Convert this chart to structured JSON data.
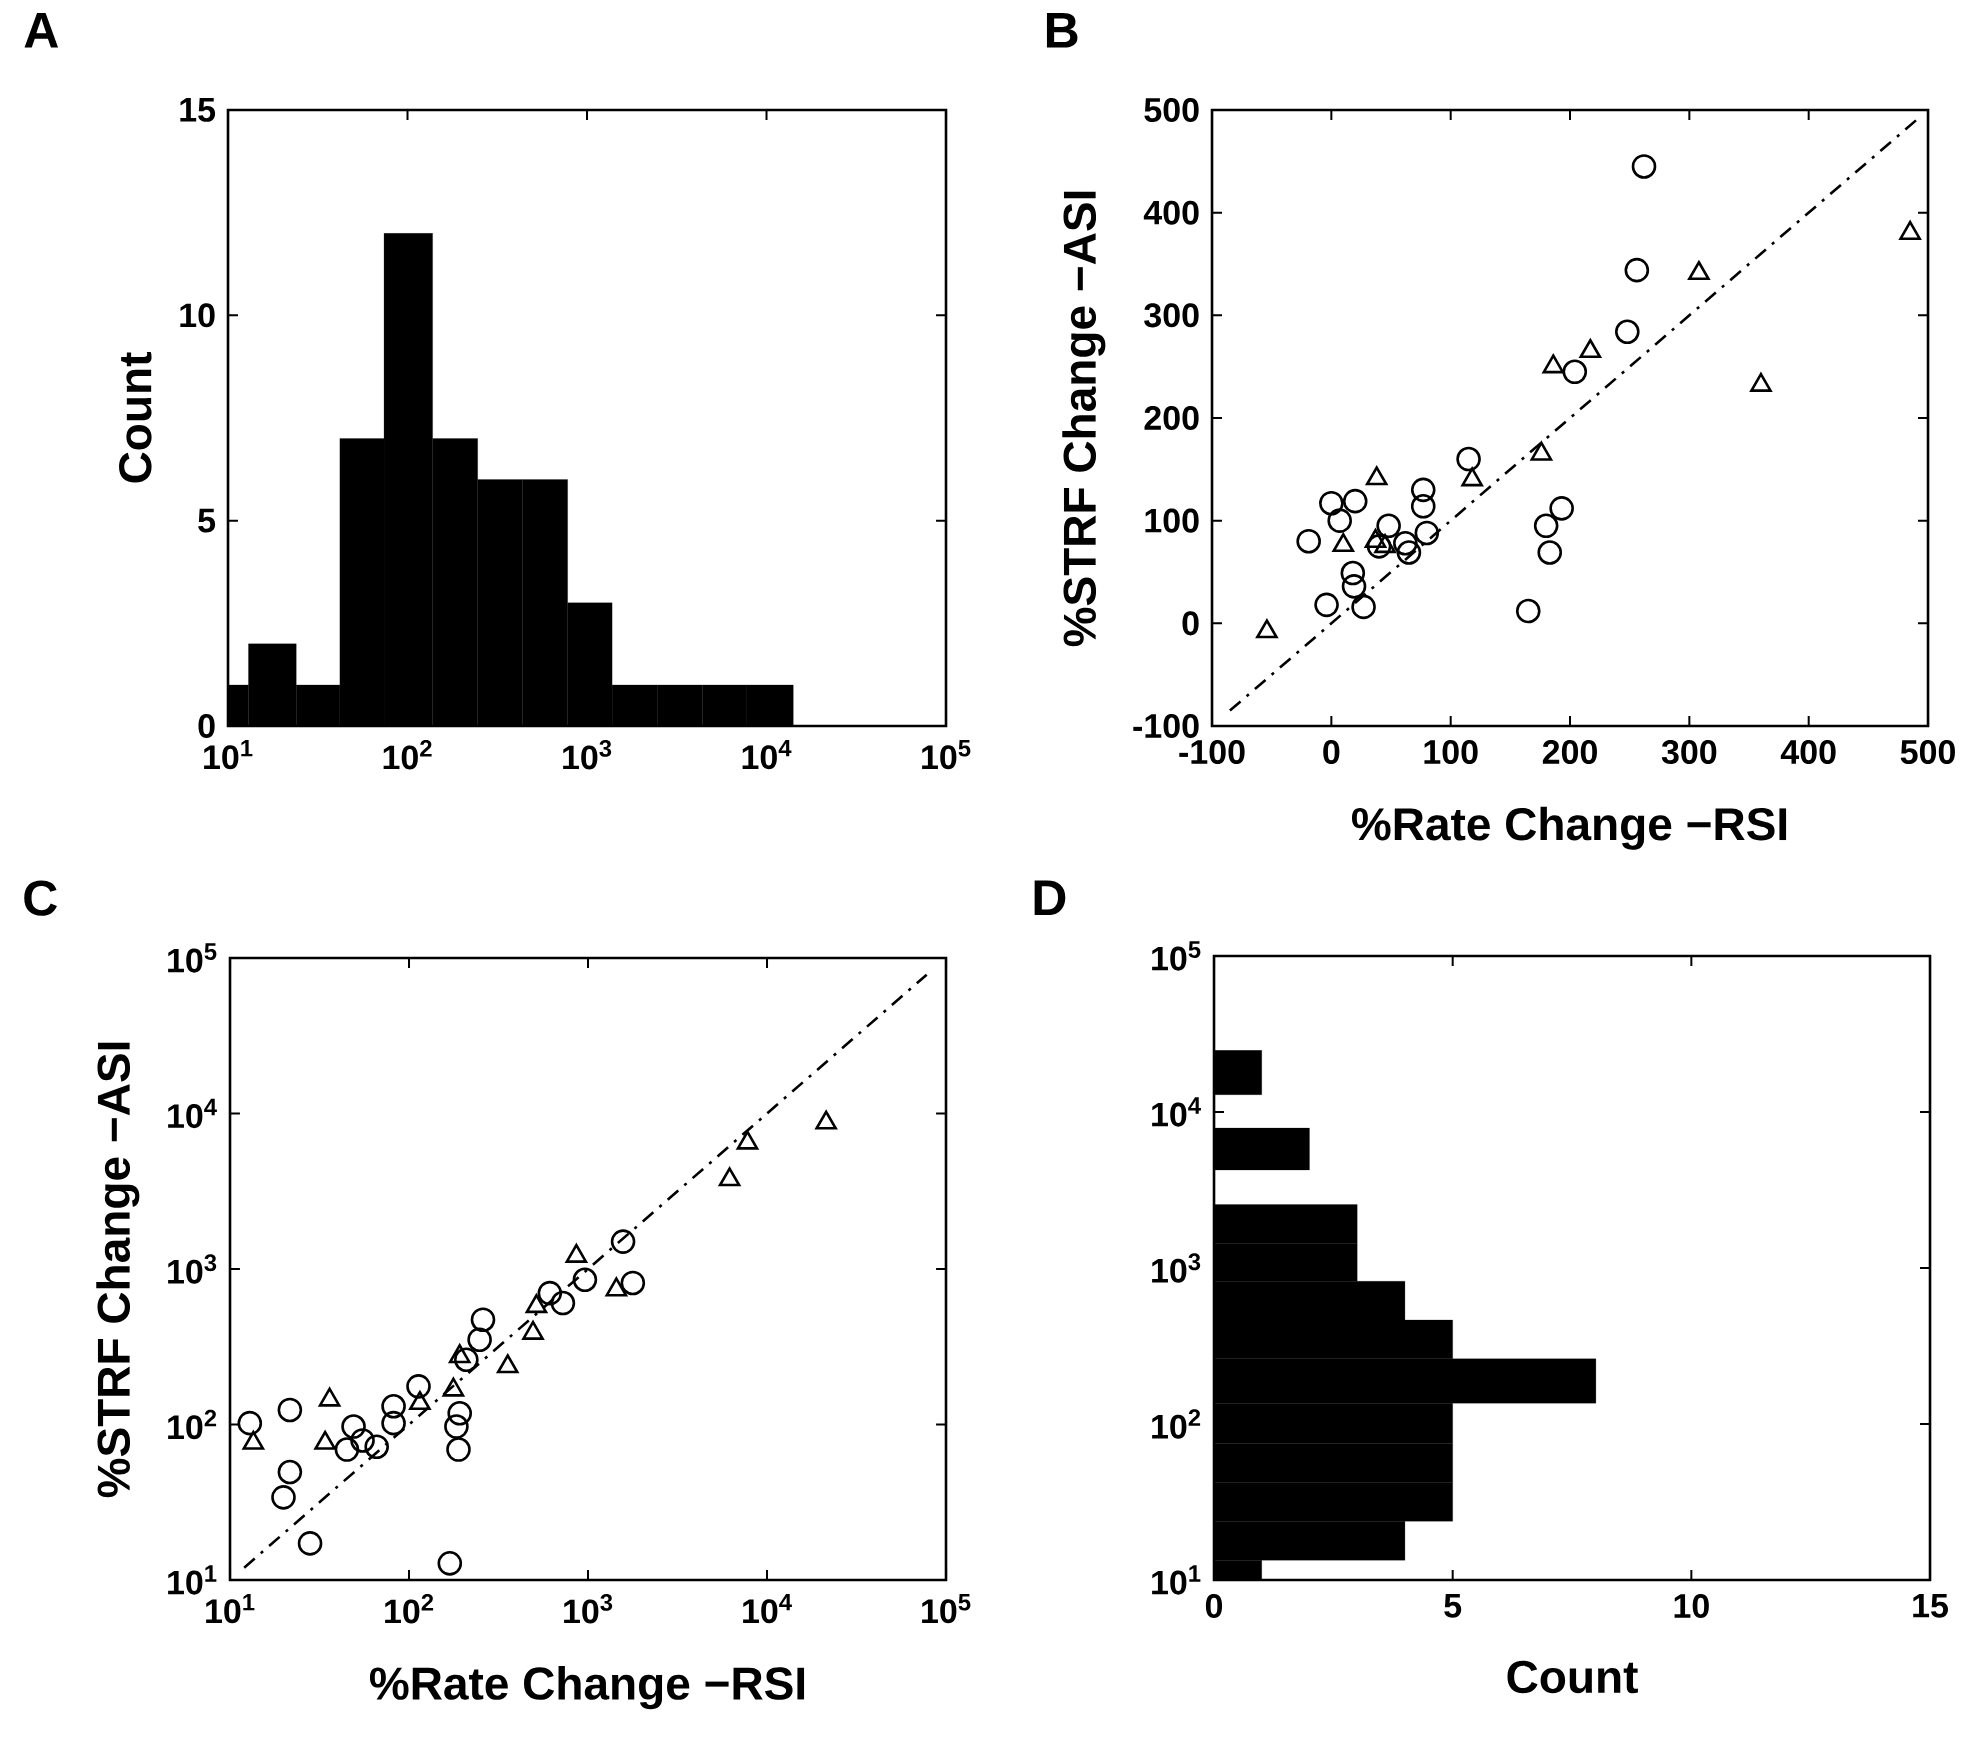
{
  "chart_data": [
    {
      "type": "histogram",
      "title": "A",
      "ylabel": "Count",
      "color": "#000000",
      "log": "x",
      "bins": [
        10,
        13,
        24,
        42,
        74,
        138,
        246,
        437,
        780,
        1380,
        2460,
        4390,
        7780,
        14100
      ],
      "values": [
        1,
        2,
        1,
        7,
        12,
        7,
        6,
        6,
        3,
        1,
        1,
        1,
        1
      ],
      "xlim": [
        10,
        100000
      ],
      "ylim": [
        0,
        15
      ],
      "xticks": [
        {
          "value": 10,
          "label": "10$^{1}$"
        },
        {
          "value": 100,
          "label": "10$^{2}$"
        },
        {
          "value": 1000,
          "label": "10$^{3}$"
        },
        {
          "value": 10000,
          "label": "10$^{4}$"
        },
        {
          "value": 100000,
          "label": "10$^{5}$"
        }
      ],
      "yticks": [
        0,
        5,
        10,
        15
      ]
    },
    {
      "type": "scatter",
      "title": "B",
      "xlabel": "%Rate Change −RSI",
      "ylabel": "%STRF Change −ASI",
      "xlim": [
        -100,
        500
      ],
      "ylim": [
        -100,
        500
      ],
      "xticks": [
        -100,
        0,
        100,
        200,
        300,
        400,
        500
      ],
      "yticks": [
        -100,
        0,
        100,
        200,
        300,
        400,
        500
      ],
      "series": [
        {
          "color": "#000000",
          "marker": "circle",
          "x": [
            262,
            256,
            248,
            204,
            115,
            77,
            77,
            80,
            193,
            180,
            183,
            165,
            0,
            20,
            7,
            -19,
            48,
            18,
            19,
            27,
            -4,
            40,
            62,
            65
          ],
          "values": [
            445,
            344,
            284,
            245,
            160,
            130,
            114,
            88,
            112,
            95,
            69,
            12,
            117,
            119,
            100,
            80,
            95,
            49,
            36,
            16,
            18,
            75,
            78,
            69
          ]
        },
        {
          "color": "#000000",
          "marker": "triangle",
          "x": [
            485,
            308,
            360,
            217,
            186,
            176,
            118,
            38,
            -54,
            10,
            37,
            45
          ],
          "values": [
            380,
            341,
            232,
            265,
            250,
            165,
            140,
            141,
            -8,
            76,
            80,
            75
          ]
        },
        {
          "type": "line",
          "color": "#000000",
          "line_style": "dashdot",
          "x": [
            -85,
            490
          ],
          "values": [
            -85,
            490
          ]
        }
      ]
    },
    {
      "type": "scatter",
      "title": "C",
      "xlabel": "%Rate Change −RSI",
      "ylabel": "%STRF Change −ASI",
      "log": "xy",
      "xlim": [
        10,
        100000
      ],
      "ylim": [
        10,
        100000
      ],
      "xticks": [
        {
          "value": 10,
          "label": "10$^{1}$"
        },
        {
          "value": 100,
          "label": "10$^{2}$"
        },
        {
          "value": 1000,
          "label": "10$^{3}$"
        },
        {
          "value": 10000,
          "label": "10$^{4}$"
        },
        {
          "value": 100000,
          "label": "10$^{5}$"
        }
      ],
      "yticks": [
        {
          "value": 10,
          "label": "10$^{1}$"
        },
        {
          "value": 100,
          "label": "10$^{2}$"
        },
        {
          "value": 1000,
          "label": "10$^{3}$"
        },
        {
          "value": 10000,
          "label": "10$^{4}$"
        },
        {
          "value": 100000,
          "label": "10$^{5}$"
        }
      ],
      "series": [
        {
          "color": "#000000",
          "marker": "circle",
          "x": [
            1570,
            1780,
            961,
            724,
            612,
            259,
            248,
            209,
            192,
            184,
            189,
            169,
            113,
            82,
            82,
            66,
            49,
            45,
            21.6,
            21.6,
            19.9,
            28,
            12.9,
            55
          ],
          "values": [
            1500,
            813,
            853,
            604,
            700,
            472,
            351,
            261,
            118,
            97,
            69,
            12.8,
            176,
            131,
            102,
            72,
            97,
            69,
            124,
            49.5,
            34,
            17.2,
            102,
            79
          ]
        },
        {
          "color": "#000000",
          "marker": "triangle",
          "x": [
            21400,
            7780,
            6180,
            861,
            1440,
            515,
            493,
            356,
            177,
            192,
            115,
            36,
            34,
            13.5
          ],
          "values": [
            8710,
            6470,
            3760,
            1210,
            736,
            575,
            387,
            236,
            167,
            274,
            137,
            144,
            76,
            76
          ]
        },
        {
          "type": "line",
          "color": "#000000",
          "line_style": "dashdot",
          "x": [
            12,
            78000
          ],
          "values": [
            12,
            78000
          ]
        }
      ]
    },
    {
      "type": "histogram",
      "title": "D",
      "xlabel": "Count",
      "color": "#000000",
      "log": "y",
      "orientation": "horizontal",
      "bins": [
        10,
        13.4,
        23.8,
        42,
        75,
        136,
        262,
        464,
        822,
        1440,
        2550,
        4250,
        7890,
        12900,
        24900
      ],
      "values": [
        1,
        4,
        5,
        5,
        5,
        8,
        5,
        4,
        3,
        3,
        0,
        2,
        0,
        1
      ],
      "xlim": [
        0,
        15
      ],
      "ylim": [
        10,
        100000
      ],
      "xticks": [
        0,
        5,
        10,
        15
      ],
      "yticks": [
        {
          "value": 10,
          "label": "10$^{1}$"
        },
        {
          "value": 100,
          "label": "10$^{2}$"
        },
        {
          "value": 1000,
          "label": "10$^{3}$"
        },
        {
          "value": 10000,
          "label": "10$^{4}$"
        },
        {
          "value": 100000,
          "label": "10$^{5}$"
        }
      ]
    }
  ]
}
